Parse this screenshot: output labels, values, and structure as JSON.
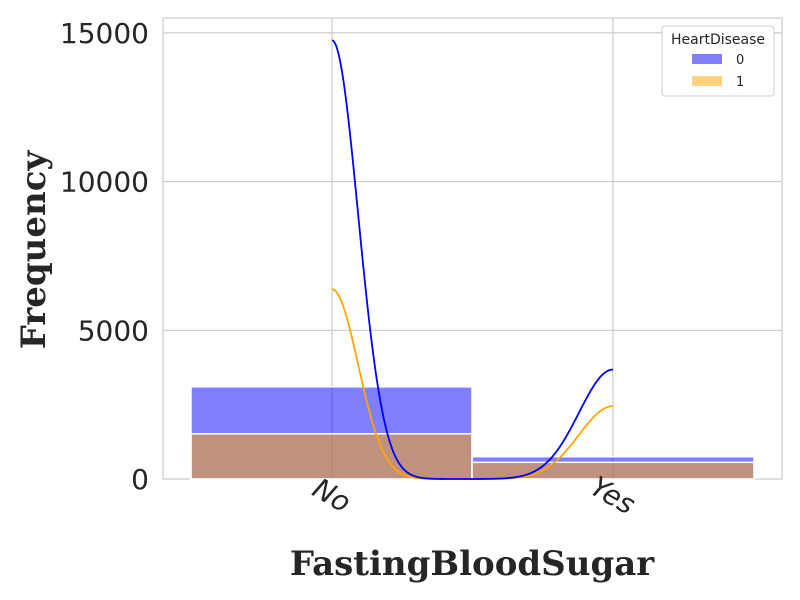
{
  "chart_data": {
    "type": "bar",
    "xlabel": "FastingBloodSugar",
    "ylabel": "Frequency",
    "categories": [
      "No",
      "Yes"
    ],
    "ylim": [
      0,
      15500
    ],
    "yticks": [
      0,
      5000,
      10000,
      15000
    ],
    "grid": true,
    "legend": {
      "title": "HeartDisease",
      "placement": "top-right"
    },
    "series": [
      {
        "name": "0",
        "color": "#0000ff",
        "values": [
          3100,
          750
        ],
        "kde_peaks": [
          14750,
          3680
        ]
      },
      {
        "name": "1",
        "color": "#ffa500",
        "values": [
          1520,
          560
        ],
        "kde_peaks": [
          6380,
          2450
        ]
      }
    ]
  }
}
